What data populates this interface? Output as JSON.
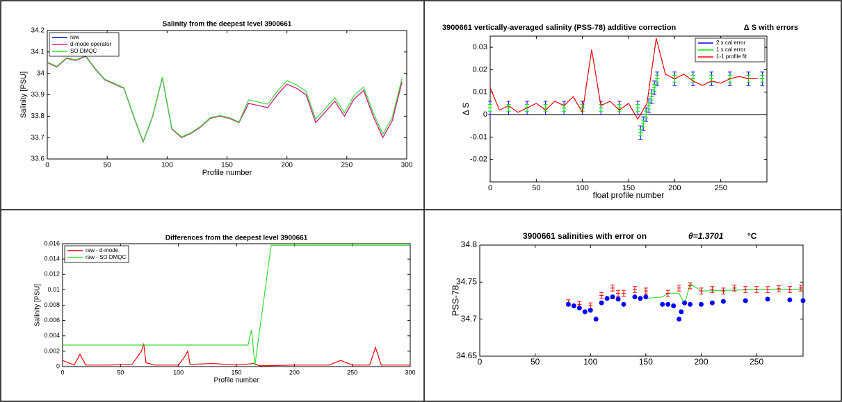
{
  "chart_data": [
    {
      "type": "line",
      "title": "Salinity from the deepest level 3900661",
      "xlabel": "Profile number",
      "ylabel": "Salinity [PSU]",
      "xlim": [
        0,
        300
      ],
      "xticks": [
        0,
        50,
        100,
        150,
        200,
        250,
        300
      ],
      "ylim": [
        33.6,
        34.2
      ],
      "yticks": [
        33.6,
        33.7,
        33.8,
        33.9,
        34,
        34.1,
        34.2
      ],
      "legend": "upper left",
      "series": [
        {
          "name": "raw",
          "color": "#0000ff",
          "style": "line",
          "x": [
            0,
            8,
            16,
            24,
            32,
            40,
            48,
            56,
            64,
            72,
            80,
            88,
            96,
            104,
            112,
            120,
            128,
            136,
            144,
            152,
            160,
            168,
            176,
            184,
            192,
            200,
            208,
            216,
            224,
            232,
            240,
            248,
            256,
            264,
            272,
            280,
            288,
            296
          ],
          "values": [
            34.05,
            34.03,
            34.07,
            34.06,
            34.08,
            34.02,
            33.97,
            33.95,
            33.93,
            33.8,
            33.68,
            33.8,
            33.98,
            33.74,
            33.7,
            33.72,
            33.75,
            33.79,
            33.8,
            33.79,
            33.77,
            33.86,
            33.85,
            33.84,
            33.9,
            33.95,
            33.93,
            33.9,
            33.77,
            33.82,
            33.87,
            33.8,
            33.88,
            33.92,
            33.8,
            33.7,
            33.78,
            33.96
          ]
        },
        {
          "name": "d-mode operator",
          "color": "#e8206e",
          "style": "line",
          "x": [
            0,
            8,
            16,
            24,
            32,
            40,
            48,
            56,
            64,
            72,
            80,
            88,
            96,
            104,
            112,
            120,
            128,
            136,
            144,
            152,
            160,
            168,
            176,
            184,
            192,
            200,
            208,
            216,
            224,
            232,
            240,
            248,
            256,
            264,
            272,
            280,
            288,
            296
          ],
          "values": [
            34.05,
            34.03,
            34.07,
            34.06,
            34.08,
            34.02,
            33.97,
            33.95,
            33.93,
            33.8,
            33.68,
            33.8,
            33.98,
            33.74,
            33.7,
            33.72,
            33.75,
            33.79,
            33.8,
            33.79,
            33.77,
            33.86,
            33.85,
            33.84,
            33.9,
            33.95,
            33.93,
            33.9,
            33.77,
            33.82,
            33.87,
            33.8,
            33.88,
            33.92,
            33.8,
            33.7,
            33.78,
            33.96
          ]
        },
        {
          "name": "SO DMQC",
          "color": "#33dd33",
          "style": "line",
          "x": [
            0,
            8,
            16,
            24,
            32,
            40,
            48,
            56,
            64,
            72,
            80,
            88,
            96,
            104,
            112,
            120,
            128,
            136,
            144,
            152,
            160,
            168,
            176,
            184,
            192,
            200,
            208,
            216,
            224,
            232,
            240,
            248,
            256,
            264,
            272,
            280,
            288,
            296
          ],
          "values": [
            34.053,
            34.033,
            34.073,
            34.063,
            34.083,
            34.023,
            33.973,
            33.953,
            33.933,
            33.803,
            33.683,
            33.803,
            33.983,
            33.743,
            33.703,
            33.723,
            33.753,
            33.793,
            33.803,
            33.793,
            33.773,
            33.876,
            33.866,
            33.856,
            33.916,
            33.966,
            33.946,
            33.916,
            33.786,
            33.836,
            33.886,
            33.816,
            33.896,
            33.936,
            33.816,
            33.716,
            33.796,
            33.976
          ]
        }
      ]
    },
    {
      "type": "line",
      "title": "3900661 vertically-averaged salinity (PSS-78) additive correction",
      "annotation": "Δ S with errors",
      "xlabel": "float profile number",
      "ylabel": "Δ S",
      "xlim": [
        0,
        300
      ],
      "xticks": [
        0,
        50,
        100,
        150,
        200,
        250
      ],
      "ylim": [
        -0.03,
        0.035
      ],
      "yticks": [
        -0.02,
        -0.01,
        0,
        0.01,
        0.02,
        0.03
      ],
      "legend": "upper right",
      "zero_line": true,
      "series": [
        {
          "name": "2 x cal error",
          "color": "#0000ff",
          "style": "errorbar",
          "error": 0.003,
          "x": [
            0,
            20,
            40,
            60,
            80,
            100,
            120,
            140,
            160,
            163,
            166,
            169,
            172,
            175,
            178,
            181,
            200,
            220,
            240,
            260,
            280,
            295
          ],
          "values": [
            0.003,
            0.003,
            0.003,
            0.003,
            0.003,
            0.003,
            0.003,
            0.003,
            0.003,
            -0.008,
            -0.004,
            0,
            0.004,
            0.008,
            0.012,
            0.016,
            0.016,
            0.016,
            0.016,
            0.016,
            0.016,
            0.016
          ]
        },
        {
          "name": "1 x cal error",
          "color": "#00ee00",
          "style": "errorbar",
          "error": 0.0015,
          "x": [
            0,
            20,
            40,
            60,
            80,
            100,
            120,
            140,
            160,
            163,
            166,
            169,
            172,
            175,
            178,
            181,
            200,
            220,
            240,
            260,
            280,
            295
          ],
          "values": [
            0.003,
            0.003,
            0.003,
            0.003,
            0.003,
            0.003,
            0.003,
            0.003,
            0.003,
            -0.008,
            -0.004,
            0,
            0.004,
            0.008,
            0.012,
            0.016,
            0.016,
            0.016,
            0.016,
            0.016,
            0.016,
            0.016
          ]
        },
        {
          "name": "1-1 profile fit",
          "color": "#ee0000",
          "style": "line",
          "x": [
            0,
            10,
            20,
            30,
            40,
            50,
            60,
            70,
            80,
            90,
            100,
            110,
            120,
            130,
            140,
            150,
            160,
            170,
            180,
            190,
            200,
            210,
            220,
            230,
            240,
            250,
            260,
            270,
            280,
            290
          ],
          "values": [
            0.012,
            0.002,
            0.004,
            0.001,
            0.003,
            0.005,
            0.002,
            0.006,
            0.004,
            0.008,
            0.001,
            0.029,
            0.004,
            0.006,
            0.002,
            0.005,
            -0.002,
            0.005,
            0.034,
            0.018,
            0.016,
            0.018,
            0.015,
            0.013,
            0.015,
            0.014,
            0.016,
            0.017,
            0.016,
            0.016
          ]
        }
      ]
    },
    {
      "type": "line",
      "title": "Differences from the deepest level 3900661",
      "xlabel": "Profile number",
      "ylabel": "Salinity [PSU]",
      "xlim": [
        0,
        300
      ],
      "xticks": [
        0,
        50,
        100,
        150,
        200,
        250,
        300
      ],
      "ylim": [
        0,
        0.016
      ],
      "yticks": [
        0,
        0.002,
        0.004,
        0.006,
        0.008,
        0.01,
        0.012,
        0.014,
        0.016
      ],
      "legend": "upper left",
      "series": [
        {
          "name": "raw - d-mode",
          "color": "#ee0000",
          "style": "line",
          "x": [
            0,
            10,
            15,
            20,
            40,
            60,
            68,
            70,
            72,
            80,
            100,
            105,
            108,
            110,
            130,
            150,
            165,
            170,
            200,
            230,
            240,
            250,
            265,
            270,
            275,
            290,
            300
          ],
          "values": [
            0.0008,
            0.0002,
            0.0016,
            0.0002,
            0.0002,
            0.0003,
            0.002,
            0.003,
            0.0005,
            0.0002,
            0.0002,
            0.0012,
            0.002,
            0.0003,
            0.0004,
            0.0002,
            0.0004,
            0.0001,
            0.0002,
            0.0002,
            0.0008,
            0.0002,
            0.0002,
            0.0025,
            0.0002,
            0.0002,
            0.0002
          ]
        },
        {
          "name": "raw - SO DMQC",
          "color": "#33dd33",
          "style": "line",
          "x": [
            0,
            160,
            163,
            166,
            180,
            300
          ],
          "values": [
            0.0028,
            0.0028,
            0.0048,
            0.0002,
            0.0158,
            0.0158
          ]
        }
      ]
    },
    {
      "type": "line",
      "title": "3900661 salinities with error on",
      "annotations": [
        "θ=1.3701",
        "°C"
      ],
      "ylabel": "PSS-78",
      "xlim": [
        0,
        292
      ],
      "xticks": [
        0,
        50,
        100,
        150,
        200,
        250
      ],
      "ylim": [
        34.65,
        34.8
      ],
      "yticks": [
        34.65,
        34.7,
        34.75,
        34.8
      ],
      "series": [
        {
          "color": "#33dd33",
          "style": "line",
          "x": [
            150,
            165,
            170,
            180,
            185,
            190,
            200,
            250,
            292
          ],
          "values": [
            34.728,
            34.73,
            34.735,
            34.735,
            34.72,
            34.748,
            34.738,
            34.74,
            34.74
          ]
        },
        {
          "color": "#ee0000",
          "style": "errorbar",
          "error": 0.004,
          "x": [
            80,
            90,
            100,
            110,
            120,
            125,
            130,
            140,
            150,
            170,
            180,
            190,
            200,
            210,
            220,
            230,
            240,
            250,
            260,
            270,
            280,
            290
          ],
          "values": [
            34.722,
            34.72,
            34.718,
            34.732,
            34.742,
            34.735,
            34.735,
            34.74,
            34.738,
            34.735,
            34.742,
            34.745,
            34.738,
            34.74,
            34.738,
            34.742,
            34.74,
            34.74,
            34.74,
            34.741,
            34.74,
            34.742
          ]
        },
        {
          "color": "#0000ff",
          "style": "markers",
          "x": [
            80,
            85,
            90,
            95,
            100,
            105,
            110,
            115,
            120,
            125,
            130,
            140,
            145,
            150,
            165,
            170,
            175,
            180,
            182,
            185,
            190,
            200,
            210,
            220,
            240,
            260,
            280,
            292
          ],
          "values": [
            34.72,
            34.718,
            34.715,
            34.71,
            34.712,
            34.7,
            34.722,
            34.728,
            34.73,
            34.727,
            34.72,
            34.73,
            34.728,
            34.73,
            34.72,
            34.72,
            34.718,
            34.7,
            34.71,
            34.722,
            34.72,
            34.72,
            34.722,
            34.724,
            34.725,
            34.727,
            34.726,
            34.725
          ]
        }
      ]
    }
  ]
}
